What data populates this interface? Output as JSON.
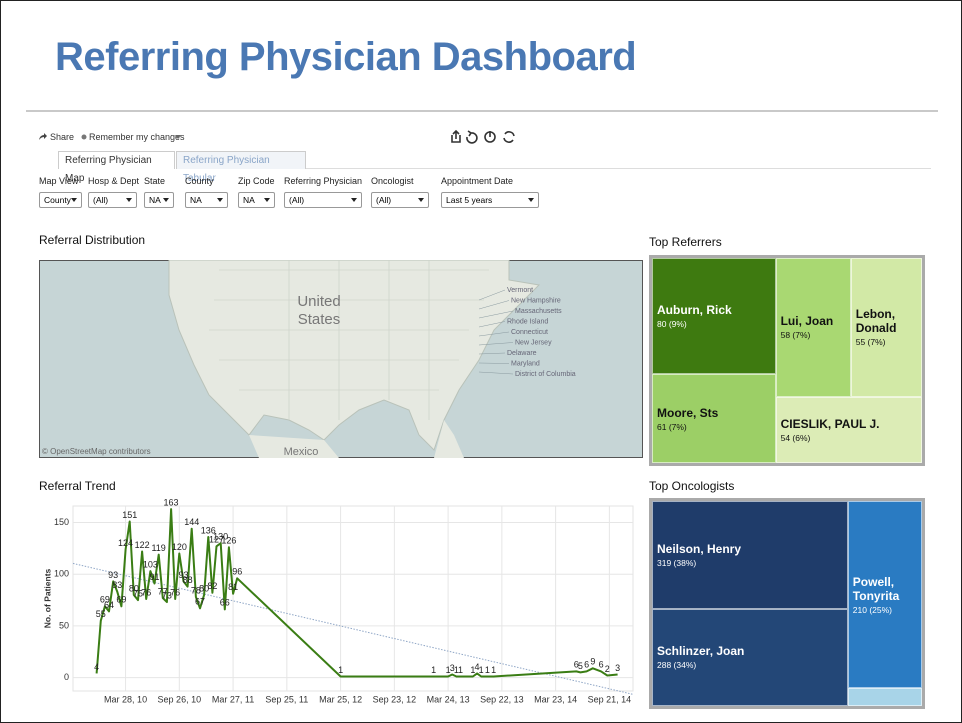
{
  "title": "Referring Physician Dashboard",
  "toolbar": {
    "share": "Share",
    "remember": "Remember my changes"
  },
  "tabs": [
    {
      "label": "Referring Physician Map",
      "active": true
    },
    {
      "label": "Referring Physician Tabular",
      "active": false
    }
  ],
  "filters": [
    {
      "label": "Map View",
      "value": "County"
    },
    {
      "label": "Hosp & Dept",
      "value": "(All)"
    },
    {
      "label": "State",
      "value": "NA"
    },
    {
      "label": "County",
      "value": "NA"
    },
    {
      "label": "Zip Code",
      "value": "NA"
    },
    {
      "label": "Referring Physician",
      "value": "(All)"
    },
    {
      "label": "Oncologist",
      "value": "(All)"
    },
    {
      "label": "Appointment Date",
      "value": "Last 5 years"
    }
  ],
  "map": {
    "title": "Referral Distribution",
    "country_label": [
      "United",
      "States"
    ],
    "neighbor_label": "Mexico",
    "attribution": "© OpenStreetMap contributors",
    "state_labels": [
      "Vermont",
      "New Hampshire",
      "Massachusetts",
      "Rhode Island",
      "Connecticut",
      "New Jersey",
      "Delaware",
      "Maryland",
      "District of Columbia"
    ]
  },
  "top_referrers": {
    "title": "Top Referrers",
    "items": [
      {
        "name": "Auburn, Rick",
        "value": 80,
        "value_label": "80 (9%)",
        "color": "#3e7a10"
      },
      {
        "name": "Lui, Joan",
        "value": 58,
        "value_label": "58 (7%)",
        "color": "#a9d872"
      },
      {
        "name": "Lebon, Donald",
        "value": 55,
        "value_label": "55 (7%)",
        "color": "#d2e9a6"
      },
      {
        "name": "Moore, Sts",
        "value": 61,
        "value_label": "61 (7%)",
        "color": "#9ccf66"
      },
      {
        "name": "CIESLIK, PAUL  J.",
        "value": 54,
        "value_label": "54 (6%)",
        "color": "#dcecb6"
      }
    ]
  },
  "top_oncologists": {
    "title": "Top Oncologists",
    "items": [
      {
        "name": "Neilson, Henry",
        "value": 319,
        "value_label": "319 (38%)",
        "color": "#1f3c6a"
      },
      {
        "name": "Schlinzer, Joan",
        "value": 288,
        "value_label": "288 (34%)",
        "color": "#234777"
      },
      {
        "name": "Powell, Tonyrita",
        "value": 210,
        "value_label": "210 (25%)",
        "color": "#2a7bc2"
      },
      {
        "name": null,
        "value": 20,
        "value_label": null,
        "color": "#a8d4e8"
      }
    ]
  },
  "chart_data": {
    "type": "line",
    "title": "Referral Trend",
    "y_label": "No. of Patients",
    "x": [
      "2009-12-20",
      "2010-01-03",
      "2010-01-17",
      "2010-01-31",
      "2010-02-14",
      "2010-02-28",
      "2010-03-14",
      "2010-03-28",
      "2010-04-11",
      "2010-04-25",
      "2010-05-09",
      "2010-05-23",
      "2010-06-06",
      "2010-06-20",
      "2010-07-04",
      "2010-07-18",
      "2010-08-01",
      "2010-08-15",
      "2010-08-29",
      "2010-09-12",
      "2010-09-26",
      "2010-10-10",
      "2010-10-24",
      "2010-11-07",
      "2010-11-21",
      "2010-12-05",
      "2010-12-19",
      "2011-01-02",
      "2011-01-16",
      "2011-01-30",
      "2011-02-13",
      "2011-02-27",
      "2011-03-13",
      "2011-03-27",
      "2011-04-10",
      "2012-03-25",
      "2013-02-03",
      "2013-03-24",
      "2013-04-07",
      "2013-04-21",
      "2013-05-05",
      "2013-06-16",
      "2013-06-30",
      "2013-07-14",
      "2013-08-04",
      "2013-08-25",
      "2014-06-01",
      "2014-06-15",
      "2014-07-06",
      "2014-07-27",
      "2014-08-24",
      "2014-09-14",
      "2014-10-19"
    ],
    "values": [
      4,
      55,
      69,
      64,
      93,
      83,
      69,
      124,
      151,
      80,
      75,
      122,
      76,
      103,
      91,
      119,
      77,
      73,
      163,
      76,
      120,
      93,
      88,
      144,
      78,
      67,
      80,
      136,
      82,
      127,
      130,
      66,
      126,
      81,
      96,
      1,
      1,
      1,
      3,
      1,
      1,
      1,
      4,
      1,
      1,
      1,
      6,
      5,
      6,
      9,
      6,
      2,
      3
    ],
    "color": "#3a7d14",
    "trend_line": true,
    "trend_color": "#8fa6c6",
    "xlim": [
      "2009-10-01",
      "2014-12-10"
    ],
    "xticks": [
      {
        "value": "2010-03-28",
        "label": "Mar 28, 10"
      },
      {
        "value": "2010-09-26",
        "label": "Sep 26, 10"
      },
      {
        "value": "2011-03-27",
        "label": "Mar 27, 11"
      },
      {
        "value": "2011-09-25",
        "label": "Sep 25, 11"
      },
      {
        "value": "2012-03-25",
        "label": "Mar 25, 12"
      },
      {
        "value": "2012-09-23",
        "label": "Sep 23, 12"
      },
      {
        "value": "2013-03-24",
        "label": "Mar 24, 13"
      },
      {
        "value": "2013-09-22",
        "label": "Sep 22, 13"
      },
      {
        "value": "2014-03-23",
        "label": "Mar 23, 14"
      },
      {
        "value": "2014-09-21",
        "label": "Sep 21, 14"
      }
    ],
    "ylim": [
      -13,
      166
    ],
    "yticks": [
      0,
      50,
      100,
      150
    ],
    "grid": true
  }
}
